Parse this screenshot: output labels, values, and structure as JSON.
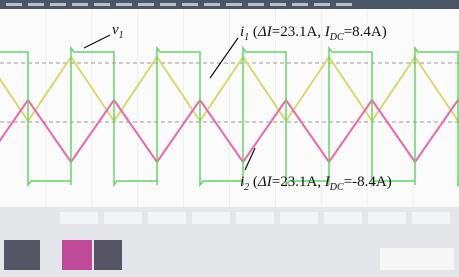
{
  "annotations": [
    {
      "parts": [
        "v",
        "1"
      ]
    },
    {
      "parts": [
        "i",
        "1",
        " (",
        "ΔI",
        "=23.1A, ",
        "I",
        "DC",
        "=8.4A)"
      ]
    },
    {
      "parts": [
        "i",
        "2",
        " (",
        "ΔI",
        "=23.1A, ",
        "I",
        "DC",
        "=-8.4A)"
      ]
    }
  ]
}
